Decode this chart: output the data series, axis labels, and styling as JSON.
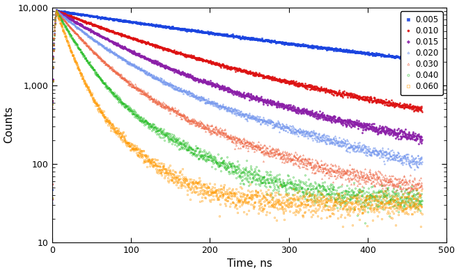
{
  "series": [
    {
      "label": "0.005",
      "color": "#1a44e0",
      "marker": "s",
      "marker_size": 1.5,
      "tau1": 220,
      "tau2": 500,
      "amp1": 0.6,
      "amp2": 0.4,
      "bg": 55,
      "filled": true
    },
    {
      "label": "0.010",
      "color": "#dd1111",
      "marker": "o",
      "marker_size": 1.5,
      "tau1": 90,
      "tau2": 250,
      "amp1": 0.7,
      "amp2": 0.3,
      "bg": 45,
      "filled": true
    },
    {
      "label": "0.015",
      "color": "#8b1fa8",
      "marker": "D",
      "marker_size": 1.5,
      "tau1": 60,
      "tau2": 180,
      "amp1": 0.75,
      "amp2": 0.25,
      "bg": 38,
      "filled": true
    },
    {
      "label": "0.020",
      "color": "#7799ee",
      "marker": "*",
      "marker_size": 1.8,
      "tau1": 45,
      "tau2": 140,
      "amp1": 0.78,
      "amp2": 0.22,
      "bg": 32,
      "filled": false
    },
    {
      "label": "0.030",
      "color": "#ee6644",
      "marker": "^",
      "marker_size": 1.5,
      "tau1": 32,
      "tau2": 100,
      "amp1": 0.82,
      "amp2": 0.18,
      "bg": 35,
      "filled": false
    },
    {
      "label": "0.040",
      "color": "#22bb22",
      "marker": "o",
      "marker_size": 1.5,
      "tau1": 22,
      "tau2": 70,
      "amp1": 0.85,
      "amp2": 0.15,
      "bg": 33,
      "filled": false
    },
    {
      "label": "0.060",
      "color": "#ff9900",
      "marker": "s",
      "marker_size": 1.5,
      "tau1": 14,
      "tau2": 45,
      "amp1": 0.88,
      "amp2": 0.12,
      "bg": 31,
      "filled": false
    }
  ],
  "xlim": [
    0,
    500
  ],
  "ylim_log": [
    10,
    10000
  ],
  "xlabel": "Time, ns",
  "ylabel": "Counts",
  "n_points": 1500,
  "peak": 9000,
  "background_color": "#ffffff",
  "legend_fontsize": 8.5,
  "axis_fontsize": 11,
  "tick_fontsize": 9
}
